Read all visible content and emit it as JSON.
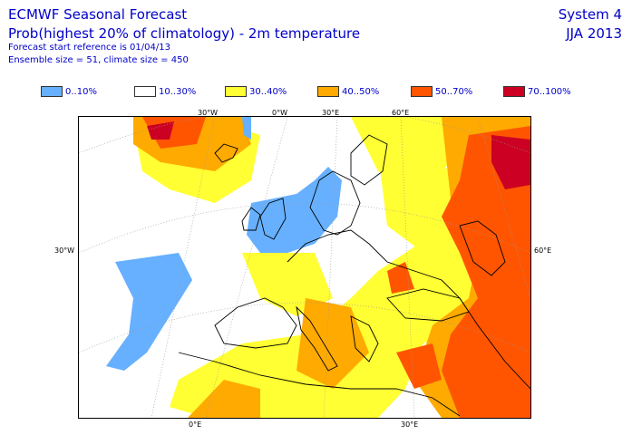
{
  "header": {
    "title": "ECMWF Seasonal Forecast",
    "subtitle": "Prob(highest 20% of climatology) - 2m temperature",
    "forecast_start": "Forecast start reference is 01/04/13",
    "ensemble": "Ensemble size = 51, climate size = 450",
    "system": "System 4",
    "season": "JJA 2013"
  },
  "legend": [
    {
      "label": "0..10%",
      "color": "#66b0ff"
    },
    {
      "label": "10..30%",
      "color": "#ffffff"
    },
    {
      "label": "30..40%",
      "color": "#ffff33"
    },
    {
      "label": "40..50%",
      "color": "#ffaa00"
    },
    {
      "label": "50..70%",
      "color": "#ff5500"
    },
    {
      "label": "70..100%",
      "color": "#cc0022"
    }
  ],
  "map": {
    "lon_labels_top": [
      "30°W",
      "0°W",
      "30°E",
      "60°E"
    ],
    "lon_labels_bottom": [
      "0°E",
      "30°E"
    ],
    "lat_label_left": "30°W",
    "lat_label_right": "60°E"
  }
}
